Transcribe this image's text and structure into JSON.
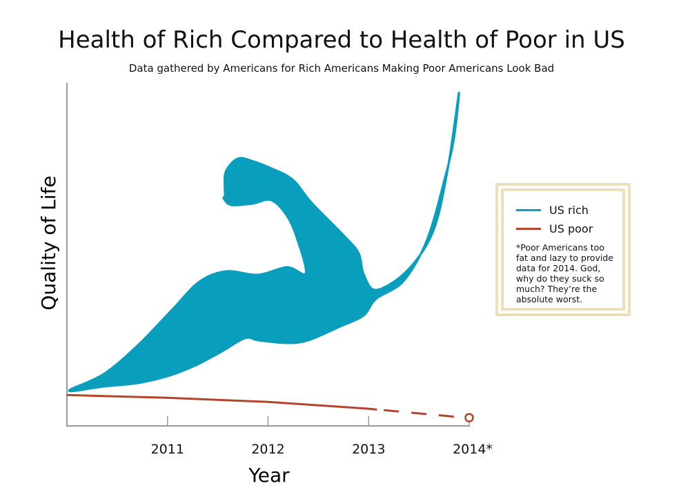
{
  "chart_data": {
    "type": "line",
    "title": "Health of Rich Compared to Health of Poor in US",
    "subtitle": "Data gathered by Americans for Rich Americans Making Poor Americans Look Bad",
    "xlabel": "Year",
    "ylabel": "Quality of Life",
    "x_ticks": [
      "2011",
      "2012",
      "2013",
      "2014*"
    ],
    "xlim": [
      2010,
      2014
    ],
    "ylim": [
      0,
      100
    ],
    "grid": false,
    "legend_placement": "right",
    "series": [
      {
        "name": "US rich",
        "color": "#0a9ebd",
        "shape": "flexed-arm-icon",
        "x": [
          2010,
          2014
        ],
        "values": [
          10,
          97
        ]
      },
      {
        "name": "US poor",
        "color": "#b5432c",
        "x": [
          2010,
          2011,
          2012,
          2013,
          2014
        ],
        "values": [
          9,
          8.2,
          7,
          5,
          2.4
        ],
        "dashed_from": 2013,
        "open_marker_at": 2014
      }
    ],
    "note": "*Poor Americans too fat and lazy to provide data for 2014. God, why do they suck so much? They’re the absolute worst."
  }
}
